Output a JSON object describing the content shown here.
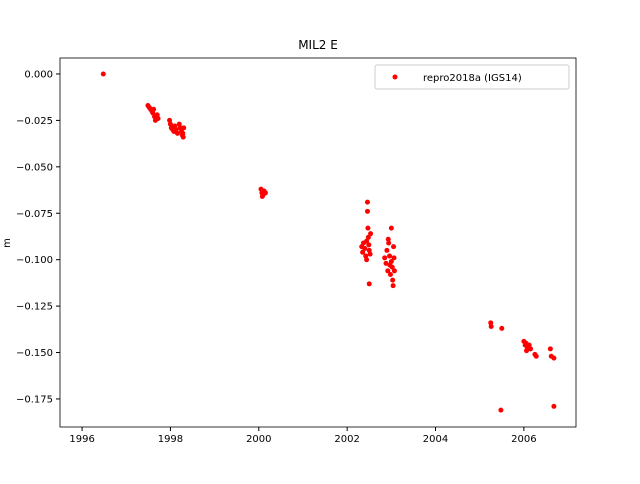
{
  "chart_data": {
    "type": "scatter",
    "title": "MIL2 E",
    "ylabel": "m",
    "series": [
      {
        "name": "repro2018a (IGS14)",
        "color": "#ff0000",
        "x": [
          1996.48,
          1997.49,
          1997.52,
          1997.55,
          1997.58,
          1997.6,
          1997.62,
          1997.64,
          1997.66,
          1997.7,
          1997.72,
          1997.98,
          1998.0,
          1998.02,
          1998.05,
          1998.08,
          1998.1,
          1998.13,
          1998.16,
          1998.2,
          1998.22,
          1998.25,
          1998.27,
          1998.29,
          1998.3,
          1998.28,
          2000.05,
          2000.07,
          2000.1,
          2000.12,
          2000.15,
          2000.08,
          2002.33,
          2002.35,
          2002.37,
          2002.4,
          2002.42,
          2002.44,
          2002.46,
          2002.46,
          2002.47,
          2002.48,
          2002.49,
          2002.5,
          2002.5,
          2002.52,
          2002.53,
          2002.44,
          2002.85,
          2002.88,
          2002.9,
          2002.92,
          2002.94,
          2002.96,
          2002.98,
          2003.0,
          2003.0,
          2003.02,
          2003.03,
          2003.04,
          2003.05,
          2003.06,
          2003.07,
          2002.93,
          2002.97,
          2005.25,
          2005.26,
          2005.5,
          2005.48,
          2006.0,
          2006.03,
          2006.05,
          2006.08,
          2006.1,
          2006.12,
          2006.06,
          2006.15,
          2006.25,
          2006.28,
          2006.6,
          2006.62,
          2006.68,
          2006.68
        ],
        "values": [
          0.0,
          -0.017,
          -0.018,
          -0.019,
          -0.02,
          -0.021,
          -0.019,
          -0.023,
          -0.025,
          -0.022,
          -0.024,
          -0.025,
          -0.027,
          -0.029,
          -0.03,
          -0.031,
          -0.028,
          -0.03,
          -0.032,
          -0.027,
          -0.029,
          -0.031,
          -0.033,
          -0.034,
          -0.029,
          -0.032,
          -0.062,
          -0.064,
          -0.065,
          -0.063,
          -0.064,
          -0.066,
          -0.093,
          -0.096,
          -0.091,
          -0.094,
          -0.098,
          -0.09,
          -0.069,
          -0.074,
          -0.083,
          -0.088,
          -0.092,
          -0.095,
          -0.113,
          -0.097,
          -0.086,
          -0.1,
          -0.099,
          -0.102,
          -0.095,
          -0.106,
          -0.091,
          -0.098,
          -0.108,
          -0.101,
          -0.083,
          -0.104,
          -0.111,
          -0.114,
          -0.093,
          -0.099,
          -0.106,
          -0.089,
          -0.103,
          -0.134,
          -0.136,
          -0.137,
          -0.181,
          -0.144,
          -0.146,
          -0.145,
          -0.148,
          -0.147,
          -0.146,
          -0.149,
          -0.148,
          -0.151,
          -0.152,
          -0.148,
          -0.152,
          -0.153,
          -0.179
        ]
      }
    ],
    "xlim": [
      1995.5,
      2007.18
    ],
    "xticks": [
      1996,
      1998,
      2000,
      2002,
      2004,
      2006
    ],
    "ylim": [
      -0.1901,
      0.0086
    ],
    "yticks": [
      {
        "value": 0,
        "label": "0.000"
      },
      {
        "value": -0.025,
        "label": "−0.025"
      },
      {
        "value": -0.05,
        "label": "−0.050"
      },
      {
        "value": -0.075,
        "label": "−0.075"
      },
      {
        "value": -0.1,
        "label": "−0.100"
      },
      {
        "value": -0.125,
        "label": "−0.125"
      },
      {
        "value": -0.15,
        "label": "−0.150"
      },
      {
        "value": -0.175,
        "label": "−0.175"
      }
    ],
    "legend": "upper right"
  }
}
